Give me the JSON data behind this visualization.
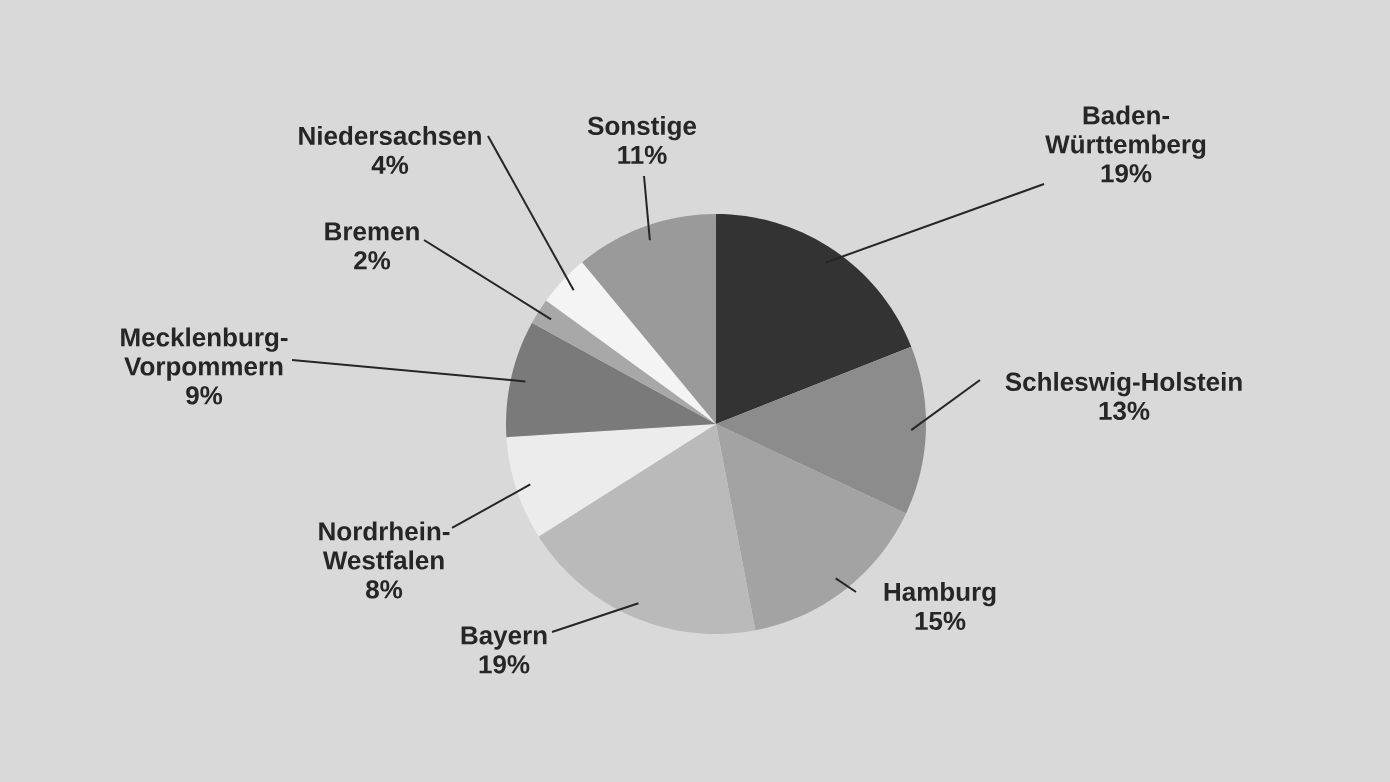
{
  "chart_data": {
    "type": "pie",
    "categories": [
      "Baden-Württemberg",
      "Schleswig-Holstein",
      "Hamburg",
      "Bayern",
      "Nordrhein-Westfalen",
      "Mecklenburg-Vorpommern",
      "Bremen",
      "Niedersachsen",
      "Sonstige"
    ],
    "values": [
      19,
      13,
      15,
      19,
      8,
      9,
      2,
      4,
      11
    ],
    "value_labels": [
      "19%",
      "13%",
      "15%",
      "19%",
      "8%",
      "9%",
      "2%",
      "4%",
      "11%"
    ],
    "colors": [
      "#333333",
      "#8c8c8c",
      "#a3a3a3",
      "#bababa",
      "#ececec",
      "#7a7a7a",
      "#a8a8a8",
      "#f4f4f4",
      "#9a9a9a"
    ]
  }
}
